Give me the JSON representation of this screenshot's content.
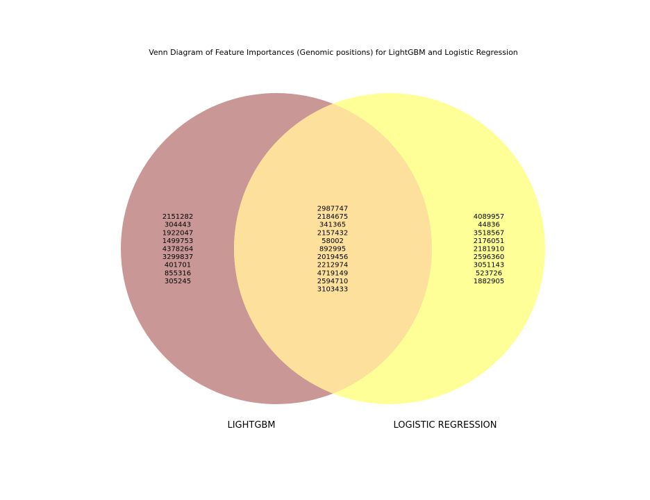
{
  "title": "Venn Diagram of Feature Importances (Genomic positions) for LightGBM and Logistic Regression",
  "colors": {
    "left_circle": "#c99896",
    "right_circle": "#ffff98",
    "overlap": "#fde09c"
  },
  "sets": {
    "left": {
      "label": "LIGHTGBM",
      "only_items": [
        "2151282",
        "304443",
        "1922047",
        "1499753",
        "4378264",
        "3299837",
        "401701",
        "855316",
        "305245"
      ]
    },
    "right": {
      "label": "LOGISTIC REGRESSION",
      "only_items": [
        "4089957",
        "44836",
        "3518567",
        "2176051",
        "2181910",
        "2596360",
        "3051143",
        "523726",
        "1882905"
      ]
    },
    "intersection_items": [
      "2987747",
      "2184675",
      "341365",
      "2157432",
      "58002",
      "892995",
      "2019456",
      "2212974",
      "4719149",
      "2594710",
      "3103433"
    ]
  }
}
